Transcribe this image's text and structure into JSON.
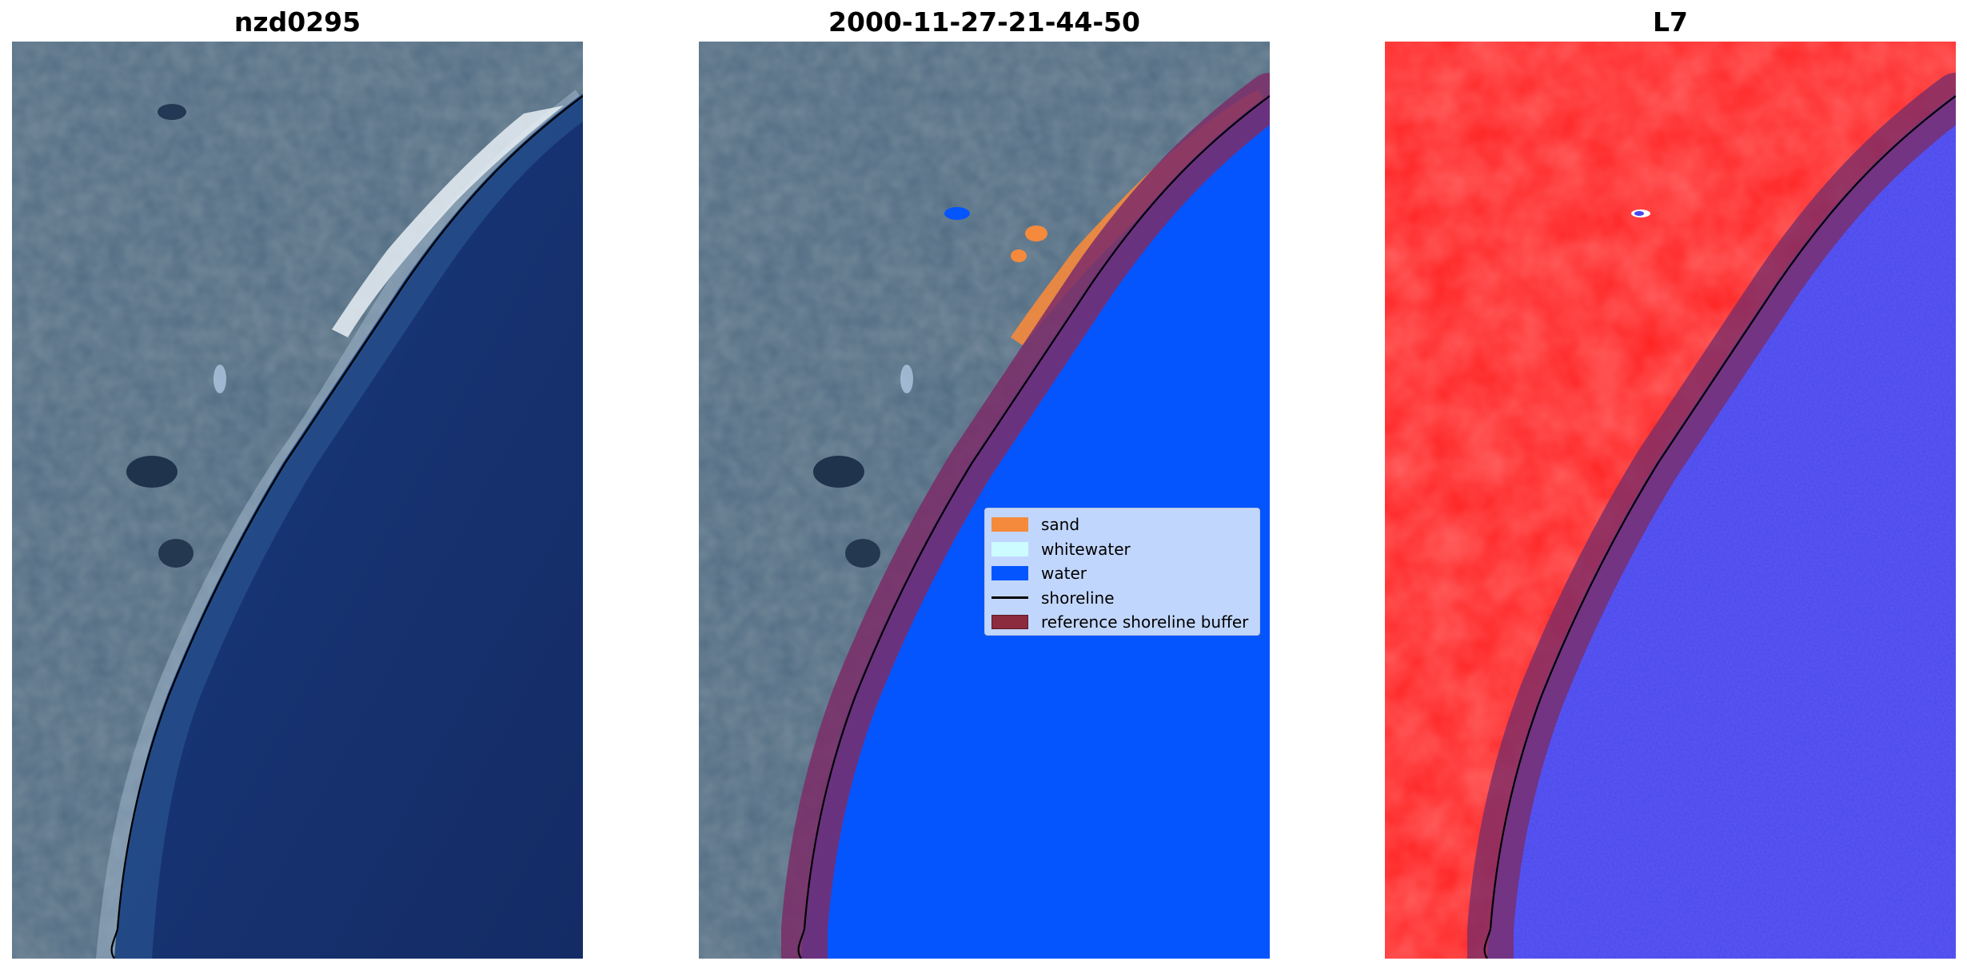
{
  "titles": {
    "site": "nzd0295",
    "date": "2000-11-27-21-44-50",
    "satellite": "L7"
  },
  "legend": {
    "items": [
      {
        "label": "sand",
        "color": "#f58a3c",
        "kind": "patch"
      },
      {
        "label": "whitewater",
        "color": "#ccfcff",
        "kind": "patch"
      },
      {
        "label": "water",
        "color": "#0555ff",
        "kind": "patch"
      },
      {
        "label": "shoreline",
        "color": "#000000",
        "kind": "line"
      },
      {
        "label": "reference shoreline buffer",
        "color": "#8c2a3e",
        "kind": "patch"
      }
    ]
  },
  "colors": {
    "land": "#44607a",
    "ocean": "#162f6e",
    "water_class": "#0555ff",
    "sand": "#f58a3c",
    "buffer": "#7b2d68",
    "land_classifier": "#ff1f1f",
    "water_classifier": "#4a47ee"
  }
}
